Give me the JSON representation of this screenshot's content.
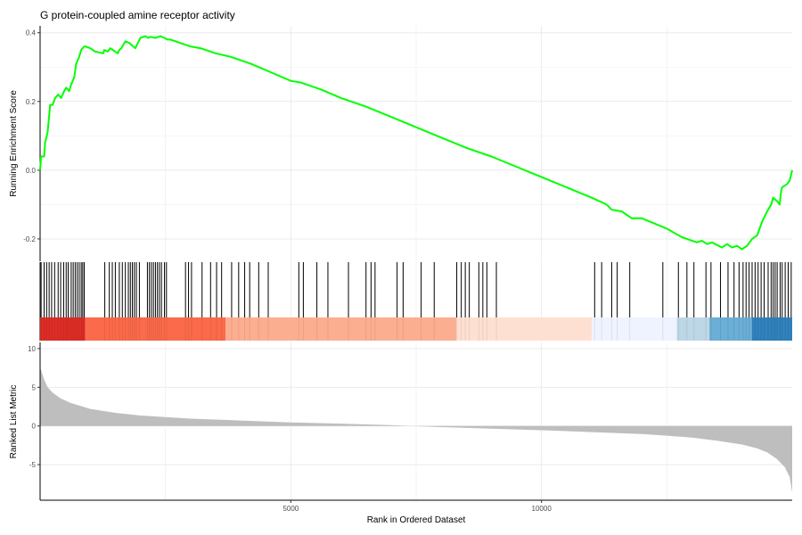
{
  "chart_data": {
    "type": "line",
    "title": "G protein-coupled amine receptor activity",
    "xlabel": "Rank in Ordered Dataset",
    "xlim": [
      0,
      15000
    ],
    "x_ticks": [
      "5000",
      "10000"
    ],
    "x_tick_values": [
      5000,
      10000
    ],
    "grid": true,
    "legend": "none",
    "panels": [
      {
        "name": "running_enrichment",
        "ylabel": "Running Enrichment Score",
        "ylim": [
          -0.265,
          0.42
        ],
        "y_ticks": [
          "0.4",
          "0.2",
          "0.0",
          "-0.2"
        ],
        "y_tick_values": [
          0.4,
          0.2,
          0.0,
          -0.2
        ],
        "line_color": "#00ff00",
        "series": [
          {
            "x": [
              0,
              20,
              80,
              100,
              150,
              200,
              250,
              300,
              360,
              420,
              480,
              520,
              580,
              620,
              680,
              720,
              780,
              820,
              880,
              900,
              1000,
              1100,
              1260,
              1280,
              1350,
              1400,
              1450,
              1500,
              1550,
              1580,
              1620,
              1700,
              1780,
              1820,
              1900,
              2000,
              2100,
              2160,
              2200,
              2300,
              2400,
              2480,
              2540,
              2600,
              2700,
              2800,
              2900,
              3000,
              3200,
              3500,
              3800,
              4200,
              4600,
              5000,
              5200,
              5600,
              6000,
              6500,
              7000,
              7500,
              8000,
              8500,
              9000,
              9500,
              10000,
              10500,
              11000,
              11300,
              11400,
              11600,
              11700,
              11800,
              12000,
              12500,
              12800,
              12900,
              13000,
              13100,
              13200,
              13300,
              13400,
              13600,
              13700,
              13800,
              13900,
              14000,
              14050,
              14100,
              14150,
              14200,
              14300,
              14400,
              14500,
              14580,
              14620,
              14700,
              14750,
              14780,
              14800,
              14900,
              14950,
              15000
            ],
            "y": [
              0.0,
              0.04,
              0.04,
              0.08,
              0.11,
              0.19,
              0.19,
              0.21,
              0.22,
              0.21,
              0.23,
              0.24,
              0.23,
              0.25,
              0.27,
              0.31,
              0.33,
              0.35,
              0.36,
              0.36,
              0.355,
              0.345,
              0.34,
              0.35,
              0.345,
              0.355,
              0.35,
              0.345,
              0.34,
              0.35,
              0.355,
              0.375,
              0.37,
              0.365,
              0.355,
              0.385,
              0.39,
              0.385,
              0.388,
              0.385,
              0.39,
              0.385,
              0.38,
              0.38,
              0.375,
              0.37,
              0.365,
              0.36,
              0.355,
              0.34,
              0.33,
              0.31,
              0.285,
              0.26,
              0.255,
              0.235,
              0.21,
              0.185,
              0.155,
              0.125,
              0.095,
              0.065,
              0.04,
              0.01,
              -0.02,
              -0.05,
              -0.08,
              -0.1,
              -0.115,
              -0.12,
              -0.13,
              -0.14,
              -0.14,
              -0.17,
              -0.195,
              -0.2,
              -0.205,
              -0.21,
              -0.205,
              -0.215,
              -0.21,
              -0.225,
              -0.215,
              -0.225,
              -0.22,
              -0.23,
              -0.225,
              -0.22,
              -0.21,
              -0.2,
              -0.19,
              -0.15,
              -0.12,
              -0.1,
              -0.08,
              -0.09,
              -0.1,
              -0.06,
              -0.05,
              -0.04,
              -0.03,
              0.0
            ]
          }
        ]
      },
      {
        "name": "gene_set_hits",
        "hit_ranks": [
          20,
          80,
          130,
          180,
          230,
          290,
          360,
          410,
          470,
          520,
          560,
          620,
          660,
          700,
          740,
          780,
          820,
          850,
          880,
          1290,
          1380,
          1440,
          1500,
          1580,
          1640,
          1700,
          1760,
          1800,
          1840,
          1880,
          1920,
          1980,
          2140,
          2180,
          2220,
          2260,
          2300,
          2340,
          2380,
          2420,
          2480,
          2520,
          2900,
          2960,
          3020,
          3230,
          3400,
          3520,
          3620,
          3820,
          3960,
          4080,
          4180,
          4360,
          4550,
          5160,
          5250,
          5520,
          5740,
          6150,
          6500,
          6600,
          6680,
          7120,
          7240,
          7600,
          7860,
          8310,
          8400,
          8480,
          8560,
          8750,
          8830,
          8910,
          9100,
          11060,
          11200,
          11400,
          11510,
          11760,
          12420,
          12730,
          12900,
          13040,
          13280,
          13380,
          13570,
          13720,
          13840,
          13940,
          14020,
          14080,
          14140,
          14200,
          14260,
          14320,
          14380,
          14440,
          14520,
          14580,
          14620,
          14660,
          14700,
          14760,
          14800,
          14860,
          14920,
          14980
        ],
        "color_bands": [
          {
            "from": 0,
            "to": 900,
            "color": "#de2d26"
          },
          {
            "from": 900,
            "to": 3700,
            "color": "#fb6a4a"
          },
          {
            "from": 3700,
            "to": 8300,
            "color": "#fcae91"
          },
          {
            "from": 8300,
            "to": 11000,
            "color": "#fee0d2"
          },
          {
            "from": 11000,
            "to": 12700,
            "color": "#eff3ff"
          },
          {
            "from": 12700,
            "to": 13350,
            "color": "#bdd7e7"
          },
          {
            "from": 13350,
            "to": 14200,
            "color": "#6baed6"
          },
          {
            "from": 14200,
            "to": 15000,
            "color": "#3182bd"
          }
        ]
      },
      {
        "name": "ranked_list_metric",
        "ylabel": "Ranked List Metric",
        "ylim": [
          -9.6,
          10.8
        ],
        "y_ticks": [
          "10",
          "5",
          "0",
          "-5"
        ],
        "y_tick_values": [
          10,
          5,
          0,
          -5
        ],
        "fill_color": "#bebebe",
        "series": [
          {
            "x": [
              0,
              30,
              80,
              150,
              250,
              400,
              600,
              800,
              1000,
              1500,
              2000,
              3000,
              4000,
              5000,
              6000,
              7000,
              7400,
              8000,
              9000,
              10000,
              11000,
              12000,
              12500,
              13000,
              13500,
              14000,
              14300,
              14500,
              14700,
              14850,
              14950,
              15000
            ],
            "y": [
              7.6,
              7.0,
              6.0,
              5.0,
              4.3,
              3.6,
              3.0,
              2.6,
              2.2,
              1.7,
              1.35,
              0.95,
              0.7,
              0.45,
              0.3,
              0.12,
              0.0,
              -0.15,
              -0.35,
              -0.55,
              -0.8,
              -1.05,
              -1.25,
              -1.5,
              -1.9,
              -2.4,
              -2.9,
              -3.4,
              -4.3,
              -5.3,
              -6.6,
              -8.6
            ]
          }
        ]
      }
    ]
  }
}
